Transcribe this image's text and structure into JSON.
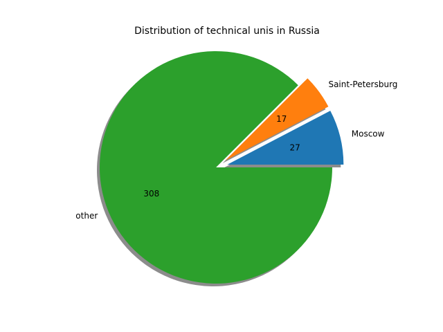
{
  "chart_data": {
    "type": "pie",
    "title": "Distribution of technical unis in Russia",
    "slices": [
      {
        "label": "Moscow",
        "value": 27,
        "display": "27",
        "color": "#1f77b4",
        "exploded": true
      },
      {
        "label": "Saint-Petersburg",
        "value": 17,
        "display": "17",
        "color": "#ff7f0e",
        "exploded": true
      },
      {
        "label": "other",
        "value": 308,
        "display": "308",
        "color": "#2ca02c",
        "exploded": false
      }
    ],
    "shadow": true,
    "start_angle": 0,
    "direction": "counterclockwise",
    "legend": "none"
  }
}
